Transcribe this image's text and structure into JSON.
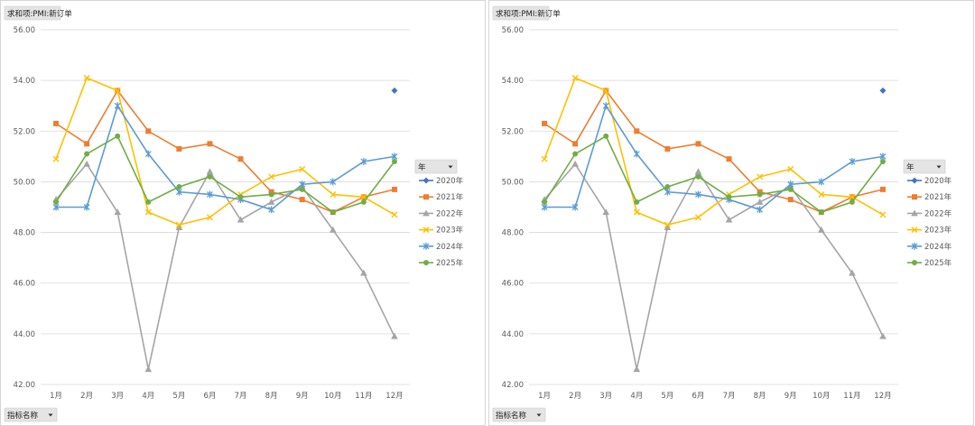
{
  "field_buttons": {
    "value_field": "求和项:PMI:新订单",
    "axis_field": "指标名称",
    "legend_field": "年"
  },
  "chart_data": [
    {
      "type": "line",
      "categories": [
        "1月",
        "2月",
        "3月",
        "4月",
        "5月",
        "6月",
        "7月",
        "8月",
        "9月",
        "10月",
        "11月",
        "12月"
      ],
      "ylim": [
        42,
        56
      ],
      "yticks": [
        "42.00",
        "44.00",
        "46.00",
        "48.00",
        "50.00",
        "52.00",
        "54.00",
        "56.00"
      ],
      "grid": true,
      "legend_placement": "right",
      "series": [
        {
          "name": "2020年",
          "color": "#4472C4",
          "marker": "diamond",
          "values": [
            null,
            null,
            null,
            null,
            null,
            null,
            null,
            null,
            null,
            null,
            null,
            53.6
          ]
        },
        {
          "name": "2021年",
          "color": "#ED7D31",
          "marker": "square",
          "values": [
            52.3,
            51.5,
            53.6,
            52.0,
            51.3,
            51.5,
            50.9,
            49.6,
            49.3,
            48.8,
            49.4,
            49.7
          ]
        },
        {
          "name": "2022年",
          "color": "#A5A5A5",
          "marker": "triangle",
          "values": [
            49.3,
            50.7,
            48.8,
            42.6,
            48.2,
            50.4,
            48.5,
            49.2,
            49.8,
            48.1,
            46.4,
            43.9
          ]
        },
        {
          "name": "2023年",
          "color": "#FFC000",
          "marker": "x",
          "values": [
            50.9,
            54.1,
            53.6,
            48.8,
            48.3,
            48.6,
            49.5,
            50.2,
            50.5,
            49.5,
            49.4,
            48.7
          ]
        },
        {
          "name": "2024年",
          "color": "#5B9BD5",
          "marker": "star",
          "values": [
            49.0,
            49.0,
            53.0,
            51.1,
            49.6,
            49.5,
            49.3,
            48.9,
            49.9,
            50.0,
            50.8,
            51.0
          ]
        },
        {
          "name": "2025年",
          "color": "#70AD47",
          "marker": "circle",
          "values": [
            49.2,
            51.1,
            51.8,
            49.2,
            49.8,
            50.2,
            49.4,
            49.5,
            49.7,
            48.8,
            49.2,
            50.8
          ]
        }
      ]
    },
    {
      "type": "line",
      "categories": [
        "1月",
        "2月",
        "3月",
        "4月",
        "5月",
        "6月",
        "7月",
        "8月",
        "9月",
        "10月",
        "11月",
        "12月"
      ],
      "ylim": [
        42,
        56
      ],
      "yticks": [
        "42.00",
        "44.00",
        "46.00",
        "48.00",
        "50.00",
        "52.00",
        "54.00",
        "56.00"
      ],
      "grid": true,
      "legend_placement": "right",
      "series": [
        {
          "name": "2020年",
          "color": "#4472C4",
          "marker": "diamond",
          "values": [
            null,
            null,
            null,
            null,
            null,
            null,
            null,
            null,
            null,
            null,
            null,
            53.6
          ]
        },
        {
          "name": "2021年",
          "color": "#ED7D31",
          "marker": "square",
          "values": [
            52.3,
            51.5,
            53.6,
            52.0,
            51.3,
            51.5,
            50.9,
            49.6,
            49.3,
            48.8,
            49.4,
            49.7
          ]
        },
        {
          "name": "2022年",
          "color": "#A5A5A5",
          "marker": "triangle",
          "values": [
            49.3,
            50.7,
            48.8,
            42.6,
            48.2,
            50.4,
            48.5,
            49.2,
            49.8,
            48.1,
            46.4,
            43.9
          ]
        },
        {
          "name": "2023年",
          "color": "#FFC000",
          "marker": "x",
          "values": [
            50.9,
            54.1,
            53.6,
            48.8,
            48.3,
            48.6,
            49.5,
            50.2,
            50.5,
            49.5,
            49.4,
            48.7
          ]
        },
        {
          "name": "2024年",
          "color": "#5B9BD5",
          "marker": "star",
          "values": [
            49.0,
            49.0,
            53.0,
            51.1,
            49.6,
            49.5,
            49.3,
            48.9,
            49.9,
            50.0,
            50.8,
            51.0
          ]
        },
        {
          "name": "2025年",
          "color": "#70AD47",
          "marker": "circle",
          "values": [
            49.2,
            51.1,
            51.8,
            49.2,
            49.8,
            50.2,
            49.4,
            49.5,
            49.7,
            48.8,
            49.2,
            50.8
          ]
        }
      ]
    }
  ]
}
